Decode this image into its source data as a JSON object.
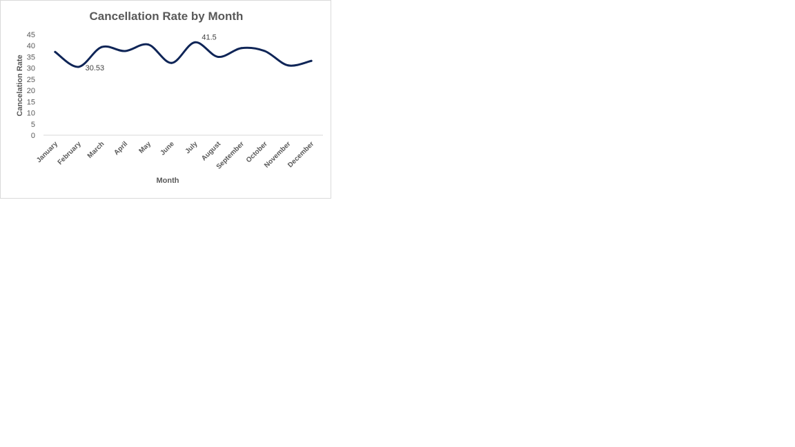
{
  "chart_data": {
    "type": "line",
    "title": "Cancellation Rate by Month",
    "xlabel": "Month",
    "ylabel": "Cancelation  Rate",
    "categories": [
      "January",
      "February",
      "March",
      "April",
      "May",
      "June",
      "July",
      "August",
      "September",
      "October",
      "November",
      "December"
    ],
    "series": [
      {
        "values": [
          37.2,
          30.53,
          39.4,
          37.6,
          40.5,
          32.3,
          41.5,
          35.0,
          38.9,
          37.6,
          31.2,
          33.2
        ]
      }
    ],
    "data_labels": [
      {
        "index": 1,
        "text": "30.53"
      },
      {
        "index": 6,
        "text": "41.5"
      }
    ],
    "ylim": [
      0,
      45
    ],
    "yticks": [
      "0",
      "5",
      "10",
      "15",
      "20",
      "25",
      "30",
      "35",
      "40",
      "45"
    ],
    "grid": false,
    "legend": "none",
    "line_color": "#0f2557",
    "smooth": true
  }
}
